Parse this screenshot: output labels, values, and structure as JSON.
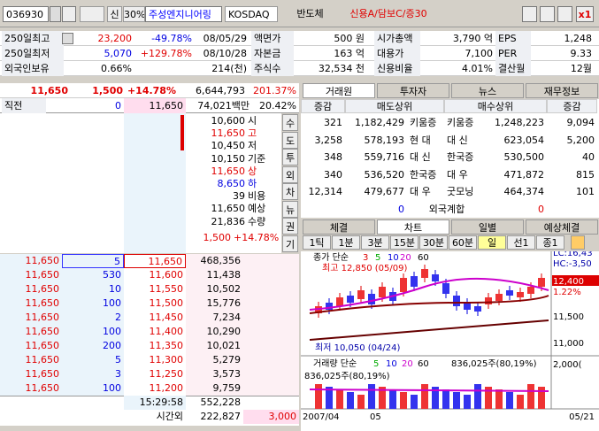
{
  "toolbar": {
    "code": "036930",
    "credit": "신",
    "margin": "30%",
    "name": "주성엔지니어링",
    "market": "KOSDAQ",
    "sector": "반도체",
    "credit_info": "신용A/담보C/증30",
    "zoom": "x1"
  },
  "info": {
    "rows": [
      [
        "250일최고",
        "23,200",
        "-49.78%",
        "08/05/29",
        "액면가",
        "500 원",
        "시가총액",
        "3,790 억",
        "EPS",
        "1,248"
      ],
      [
        "250일최저",
        "5,070",
        "+129.78%",
        "08/10/28",
        "자본금",
        "163 억",
        "대용가",
        "7,100",
        "PER",
        "9.33"
      ],
      [
        "외국인보유",
        "0.66%",
        "214(천)",
        "주식수",
        "32,534 천",
        "신용비율",
        "4.01%",
        "결산월",
        "12월"
      ]
    ]
  },
  "quote": {
    "price": "11,650",
    "change": "1,500",
    "rate": "+14.78%",
    "volume": "6,644,793",
    "turnover_rate": "201.37%",
    "prev_label": "직전",
    "prev_qty": "0",
    "prev_price": "11,650",
    "amount": "74,021백만",
    "ratio": "20.42%"
  },
  "summary": {
    "rows": [
      [
        "10,600",
        "시"
      ],
      [
        "11,650",
        "고"
      ],
      [
        "10,450",
        "저"
      ],
      [
        "10,150",
        "기준"
      ],
      [
        "11,650",
        "상"
      ],
      [
        "8,650",
        "하"
      ],
      [
        "39",
        "비용"
      ],
      [
        "11,650",
        "예상"
      ],
      [
        "21,836",
        "수량"
      ]
    ],
    "expected_change": "1,500",
    "expected_rate": "+14.78%"
  },
  "side_buttons": [
    "수",
    "도",
    "투",
    "외",
    "차",
    "뉴",
    "권",
    "기"
  ],
  "bids": {
    "rows": [
      [
        "11,650",
        "5",
        "11,650",
        "468,356"
      ],
      [
        "11,650",
        "530",
        "11,600",
        "11,438"
      ],
      [
        "11,650",
        "10",
        "11,550",
        "10,502"
      ],
      [
        "11,650",
        "100",
        "11,500",
        "15,776"
      ],
      [
        "11,650",
        "2",
        "11,450",
        "7,234"
      ],
      [
        "11,650",
        "100",
        "11,400",
        "10,290"
      ],
      [
        "11,650",
        "200",
        "11,350",
        "10,021"
      ],
      [
        "11,650",
        "5",
        "11,300",
        "5,279"
      ],
      [
        "11,650",
        "3",
        "11,250",
        "3,573"
      ],
      [
        "11,650",
        "100",
        "11,200",
        "9,759"
      ]
    ]
  },
  "footer": {
    "time": "15:29:58",
    "total": "552,228",
    "after_label": "시간외",
    "after_total": "222,827",
    "after_qty": "3,000"
  },
  "broker": {
    "tabs": [
      "거래원",
      "투자자",
      "뉴스",
      "재무정보"
    ],
    "headers": [
      "증감",
      "매도상위",
      "매수상위",
      "증감"
    ],
    "rows": [
      [
        "321",
        "1,182,429",
        "키움증",
        "키움증",
        "1,248,223",
        "9,094"
      ],
      [
        "3,258",
        "578,193",
        "현 대",
        "대 신",
        "623,054",
        "5,200"
      ],
      [
        "348",
        "559,716",
        "대 신",
        "한국증",
        "530,500",
        "40"
      ],
      [
        "340",
        "536,520",
        "한국증",
        "대 우",
        "471,872",
        "815"
      ],
      [
        "12,314",
        "479,677",
        "대 우",
        "굿모닝",
        "464,374",
        "101"
      ]
    ],
    "foreign": [
      "0",
      "외국계합",
      "0"
    ]
  },
  "chart_panel": {
    "tabs": [
      "체결",
      "차트",
      "일별",
      "예상체결"
    ],
    "periods": [
      "1틱",
      "1분",
      "3분",
      "15분",
      "30분",
      "60분",
      "일",
      "선1",
      "종1"
    ],
    "price_legend": "종가 단순",
    "ma": [
      "3",
      "5",
      "10",
      "20",
      "60"
    ],
    "high": "최고 12,850 (05/09)",
    "low": "최저 10,050 (04/24)",
    "right_labels": [
      "LC:16,43",
      "HC:-3,50",
      "12,400",
      "1.22%",
      "11,500",
      "11,000"
    ],
    "volume_legend": "거래량 단순",
    "volume_ma": [
      "5",
      "10",
      "20",
      "60"
    ],
    "volume_value": "836,025주(80,19%)",
    "volume_axis": "2,000(",
    "dates": [
      "2007/04",
      "05",
      "05/21"
    ]
  }
}
